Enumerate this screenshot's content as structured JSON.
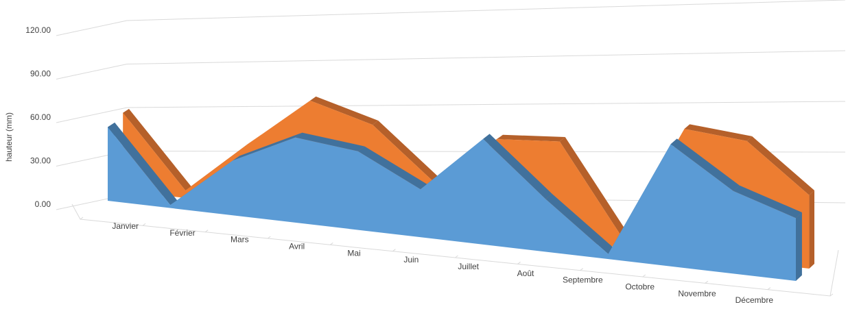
{
  "chart_data": {
    "type": "area",
    "title": "",
    "xlabel": "",
    "ylabel": "hauteur (mm)",
    "ylim": [
      0,
      120
    ],
    "yticks": [
      "0.00",
      "30.00",
      "60.00",
      "90.00",
      "120.00"
    ],
    "categories": [
      "Janvier",
      "Février",
      "Mars",
      "Avril",
      "Mai",
      "Juin",
      "Juillet",
      "Août",
      "Septembre",
      "Octobre",
      "Novembre",
      "Décembre"
    ],
    "series": [
      {
        "values": [
          50,
          2,
          36,
          55,
          50,
          30,
          65,
          32,
          3,
          72,
          48,
          36
        ]
      },
      {
        "values": [
          53,
          5,
          40,
          72,
          60,
          27,
          58,
          60,
          6,
          74,
          70,
          42
        ]
      }
    ],
    "colors": {
      "front_series": "#5b9bd5",
      "front_series_dark": "#41719c",
      "back_series": "#ed7d31",
      "back_series_dark": "#b5602a",
      "gridline": "#d9d9d9",
      "text": "#404040"
    },
    "grid": true,
    "legend": "none"
  }
}
